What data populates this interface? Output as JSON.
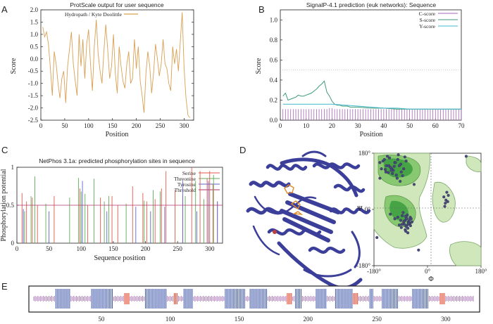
{
  "panels": {
    "A": "A",
    "B": "B",
    "C": "C",
    "D": "D",
    "E": "E"
  },
  "colors": {
    "hydropathy": "#d9a054",
    "c_score": "#a463b8",
    "s_score": "#3f9a7a",
    "y_score": "#40b8c8",
    "serine": "#e05a4a",
    "threonine": "#5fae5a",
    "tyrosine": "#5a66c8",
    "threshold": "#b0306a",
    "protein": "#3b3f9a",
    "ramachandran_core": "#46a446",
    "ramachandran_allowed": "#cfe7bb",
    "bar_helix": "#3e56a8",
    "bar_strand": "#e55a44",
    "bar_coil": "#9b5aa8"
  },
  "chart_data": [
    {
      "panel": "A",
      "type": "line",
      "title": "ProtScale output for user sequence",
      "xlabel": "Position",
      "ylabel": "Score",
      "xlim": [
        0,
        320
      ],
      "ylim": [
        -2.5,
        2.0
      ],
      "xticks": [
        0,
        50,
        100,
        150,
        200,
        250,
        300
      ],
      "yticks": [
        -2.5,
        -2.0,
        -1.5,
        -1.0,
        -0.5,
        0.0,
        0.5,
        1.0,
        1.5,
        2.0
      ],
      "ytick_labels": [
        "-2.5",
        "-2.0",
        "-1.5",
        "-1.0",
        "-0.5",
        "0.0",
        "0.5",
        "1.0",
        "1.5",
        "2.0"
      ],
      "series": [
        {
          "name": "Hydropath / Kyte Doolittle",
          "x": [
            4,
            8,
            12,
            16,
            20,
            24,
            28,
            32,
            36,
            40,
            44,
            48,
            52,
            56,
            60,
            64,
            68,
            72,
            76,
            80,
            84,
            88,
            92,
            96,
            100,
            104,
            108,
            112,
            116,
            120,
            124,
            128,
            132,
            136,
            140,
            144,
            148,
            152,
            156,
            160,
            164,
            168,
            172,
            176,
            180,
            184,
            188,
            192,
            196,
            200,
            204,
            208,
            212,
            216,
            220,
            224,
            228,
            232,
            236,
            240,
            244,
            248,
            252,
            256,
            260,
            264,
            268,
            272,
            276,
            280,
            284,
            288,
            292,
            296,
            300,
            304,
            308,
            312
          ],
          "y": [
            1.3,
            0.9,
            1.1,
            0.6,
            -0.4,
            -1.5,
            0.3,
            -0.2,
            -1.0,
            -1.6,
            -0.8,
            -0.5,
            -1.8,
            -0.3,
            0.4,
            1.1,
            -0.2,
            -0.9,
            -1.5,
            1.0,
            -0.3,
            0.8,
            -0.8,
            0.6,
            1.2,
            -0.2,
            -1.3,
            0.5,
            1.6,
            0.2,
            -0.5,
            -1.0,
            0.3,
            1.4,
            0.4,
            -0.8,
            -0.3,
            1.0,
            -0.6,
            -1.4,
            0.5,
            -0.3,
            -0.9,
            -1.2,
            -0.2,
            0.3,
            -1.0,
            -0.8,
            0.8,
            -0.4,
            0.5,
            -0.9,
            -1.5,
            -2.2,
            -0.6,
            0.3,
            -0.3,
            -1.4,
            -0.6,
            0.6,
            0.0,
            -0.7,
            -0.2,
            0.8,
            -0.2,
            -0.4,
            -1.0,
            -1.3,
            0.5,
            -0.2,
            0.4,
            -0.5,
            0.7,
            1.9,
            -0.4,
            -1.6,
            -2.3,
            -2.4
          ]
        }
      ]
    },
    {
      "panel": "B",
      "type": "line",
      "title": "SignalP-4.1 prediction (euk networks): Sequence",
      "xlabel": "Position",
      "ylabel": "Score",
      "xlim": [
        0,
        70
      ],
      "ylim": [
        0,
        1.1
      ],
      "xticks": [
        0,
        10,
        20,
        30,
        40,
        50,
        60,
        70
      ],
      "yticks": [
        0.0,
        0.2,
        0.4,
        0.6,
        0.8,
        1.0
      ],
      "ytick_labels": [
        "0.0",
        "0.2",
        "0.4",
        "0.6",
        "0.8",
        "1.0"
      ],
      "threshold": 0.5,
      "series": [
        {
          "name": "C-score",
          "style": "impulses",
          "x": [
            1,
            2,
            3,
            4,
            5,
            6,
            7,
            8,
            9,
            10,
            11,
            12,
            13,
            14,
            15,
            16,
            17,
            18,
            19,
            20,
            21,
            22,
            23,
            24,
            25,
            26,
            27,
            28,
            29,
            30,
            31,
            32,
            33,
            34,
            35,
            36,
            37,
            38,
            39,
            40,
            41,
            42,
            43,
            44,
            45,
            46,
            47,
            48,
            49,
            50,
            51,
            52,
            53,
            54,
            55,
            56,
            57,
            58,
            59,
            60,
            61,
            62,
            63,
            64,
            65,
            66,
            67,
            68,
            69,
            70
          ],
          "y": [
            0.11,
            0.11,
            0.11,
            0.11,
            0.11,
            0.11,
            0.11,
            0.11,
            0.11,
            0.11,
            0.11,
            0.11,
            0.11,
            0.11,
            0.11,
            0.11,
            0.11,
            0.11,
            0.12,
            0.12,
            0.11,
            0.11,
            0.11,
            0.11,
            0.11,
            0.11,
            0.11,
            0.11,
            0.11,
            0.11,
            0.11,
            0.11,
            0.11,
            0.11,
            0.11,
            0.11,
            0.11,
            0.11,
            0.11,
            0.11,
            0.11,
            0.11,
            0.11,
            0.11,
            0.11,
            0.11,
            0.11,
            0.11,
            0.11,
            0.11,
            0.11,
            0.11,
            0.11,
            0.11,
            0.11,
            0.11,
            0.11,
            0.11,
            0.11,
            0.11,
            0.11,
            0.11,
            0.11,
            0.11,
            0.11,
            0.11,
            0.11,
            0.11,
            0.11,
            0.11
          ]
        },
        {
          "name": "S-score",
          "x": [
            1,
            2,
            3,
            4,
            5,
            6,
            7,
            8,
            9,
            10,
            11,
            12,
            13,
            14,
            15,
            16,
            17,
            18,
            19,
            20,
            21,
            22,
            23,
            24,
            25,
            26,
            27,
            28,
            29,
            30,
            35,
            40,
            45,
            50,
            55,
            60,
            65,
            70
          ],
          "y": [
            0.24,
            0.27,
            0.2,
            0.21,
            0.22,
            0.23,
            0.25,
            0.24,
            0.24,
            0.25,
            0.26,
            0.27,
            0.29,
            0.31,
            0.34,
            0.36,
            0.39,
            0.28,
            0.24,
            0.19,
            0.16,
            0.15,
            0.15,
            0.14,
            0.14,
            0.14,
            0.13,
            0.13,
            0.13,
            0.13,
            0.12,
            0.12,
            0.11,
            0.11,
            0.11,
            0.11,
            0.11,
            0.11
          ]
        },
        {
          "name": "Y-score",
          "x": [
            1,
            5,
            10,
            15,
            18,
            20,
            25,
            30,
            35,
            40,
            45,
            50,
            55,
            60,
            65,
            70
          ],
          "y": [
            0.16,
            0.16,
            0.16,
            0.16,
            0.16,
            0.16,
            0.15,
            0.14,
            0.13,
            0.12,
            0.12,
            0.11,
            0.11,
            0.11,
            0.11,
            0.11
          ]
        }
      ]
    },
    {
      "panel": "C",
      "type": "bar",
      "title": "NetPhos 3.1a: predicted phosphorylation sites in sequence",
      "xlabel": "Sequence position",
      "ylabel": "Phosphorylation potential",
      "xlim": [
        0,
        320
      ],
      "ylim": [
        0,
        1
      ],
      "xticks": [
        0,
        50,
        100,
        150,
        200,
        250,
        300
      ],
      "yticks": [
        0,
        0.5,
        1
      ],
      "ytick_labels": [
        "0",
        "0.5",
        "1"
      ],
      "threshold": 0.5,
      "legend": [
        "Serine",
        "Threonine",
        "Tyrosine",
        "Threshold"
      ],
      "series": [
        {
          "name": "Serine",
          "x": [
            8,
            15,
            24,
            32,
            58,
            98,
            110,
            130,
            148,
            157,
            180,
            196,
            202,
            215,
            225,
            232,
            246,
            258,
            272,
            285,
            296,
            300,
            305,
            312
          ],
          "y": [
            0.66,
            0.55,
            0.6,
            0.5,
            0.62,
            0.72,
            0.5,
            0.6,
            0.62,
            0.5,
            0.75,
            0.66,
            0.55,
            0.58,
            0.72,
            0.95,
            0.7,
            0.62,
            1.0,
            0.95,
            0.85,
            0.95,
            0.78,
            0.55
          ]
        },
        {
          "name": "Threonine",
          "x": [
            12,
            22,
            28,
            45,
            82,
            96,
            100,
            106,
            120,
            136,
            143,
            170,
            198,
            212,
            223,
            262,
            278,
            291,
            306
          ],
          "y": [
            0.42,
            0.62,
            0.88,
            0.52,
            0.6,
            0.86,
            0.68,
            0.65,
            0.85,
            0.55,
            0.62,
            0.52,
            0.56,
            0.7,
            0.68,
            0.62,
            0.82,
            0.58,
            0.9
          ]
        },
        {
          "name": "Tyrosine",
          "x": [
            10,
            50,
            102,
            140,
            185,
            208,
            230,
            258,
            280,
            298,
            312
          ],
          "y": [
            0.45,
            0.42,
            0.82,
            0.42,
            0.48,
            0.42,
            0.48,
            0.82,
            0.42,
            0.82,
            0.55
          ]
        }
      ]
    },
    {
      "panel": "D",
      "type": "scatter",
      "xlabel": "Φ",
      "ylabel": "Ψ",
      "xlim": [
        -180,
        180
      ],
      "ylim": [
        -180,
        180
      ],
      "xticks": [
        -180,
        0,
        180
      ],
      "yticks": [
        -180,
        0,
        180
      ],
      "xtick_labels": [
        "-180°",
        "0°",
        "180°"
      ],
      "ytick_labels": [
        "-180°",
        "0°",
        "180°"
      ],
      "x": [
        -120,
        -130,
        -110,
        -140,
        -100,
        -125,
        -90,
        -150,
        -115,
        -105,
        -135,
        -80,
        -95,
        -145,
        -118,
        -128,
        -88,
        -108,
        -138,
        -72,
        -155,
        -98,
        -122,
        -112,
        -84,
        -132,
        -160,
        -76,
        -102,
        -142,
        -92,
        -65,
        -70,
        -60,
        -75,
        -68,
        -58,
        -80,
        -63,
        -72,
        -55,
        -85,
        -66,
        -62,
        -78,
        -90,
        -70,
        -57,
        -82,
        -64,
        -75,
        -60,
        -95,
        -100,
        -88,
        -68,
        -52,
        -73,
        -110,
        -125,
        -66,
        -86,
        -74,
        -79,
        55,
        60,
        65,
        62,
        58,
        70,
        68,
        -30,
        -45,
        -160,
        -170,
        130
      ],
      "y": [
        130,
        140,
        150,
        120,
        160,
        135,
        145,
        155,
        125,
        110,
        170,
        130,
        140,
        160,
        115,
        165,
        120,
        150,
        140,
        155,
        130,
        175,
        125,
        138,
        108,
        118,
        150,
        168,
        100,
        128,
        90,
        -40,
        -30,
        -45,
        -35,
        -50,
        -25,
        -40,
        -38,
        -55,
        -30,
        -20,
        -60,
        -42,
        -48,
        -35,
        -28,
        -52,
        -10,
        -45,
        -65,
        -32,
        -50,
        -25,
        -58,
        -18,
        -40,
        -70,
        -30,
        -15,
        -75,
        -48,
        -22,
        -38,
        40,
        20,
        55,
        30,
        10,
        45,
        25,
        -130,
        80,
        100,
        -90,
        170
      ]
    },
    {
      "panel": "E",
      "type": "table",
      "xlim": [
        1,
        320
      ],
      "xticks": [
        50,
        100,
        150,
        200,
        250,
        300
      ],
      "blocks": [
        {
          "start": 17,
          "end": 27,
          "kind": "helix"
        },
        {
          "start": 43,
          "end": 58,
          "kind": "helix"
        },
        {
          "start": 67,
          "end": 70,
          "kind": "strand"
        },
        {
          "start": 82,
          "end": 97,
          "kind": "helix"
        },
        {
          "start": 103,
          "end": 105,
          "kind": "strand"
        },
        {
          "start": 110,
          "end": 116,
          "kind": "helix"
        },
        {
          "start": 140,
          "end": 154,
          "kind": "helix"
        },
        {
          "start": 158,
          "end": 170,
          "kind": "helix"
        },
        {
          "start": 185,
          "end": 188,
          "kind": "strand"
        },
        {
          "start": 191,
          "end": 195,
          "kind": "helix"
        },
        {
          "start": 206,
          "end": 213,
          "kind": "helix"
        },
        {
          "start": 220,
          "end": 232,
          "kind": "helix"
        },
        {
          "start": 233,
          "end": 236,
          "kind": "strand"
        },
        {
          "start": 245,
          "end": 247,
          "kind": "helix"
        },
        {
          "start": 254,
          "end": 265,
          "kind": "helix"
        },
        {
          "start": 276,
          "end": 287,
          "kind": "helix"
        },
        {
          "start": 296,
          "end": 299,
          "kind": "strand"
        }
      ]
    }
  ]
}
